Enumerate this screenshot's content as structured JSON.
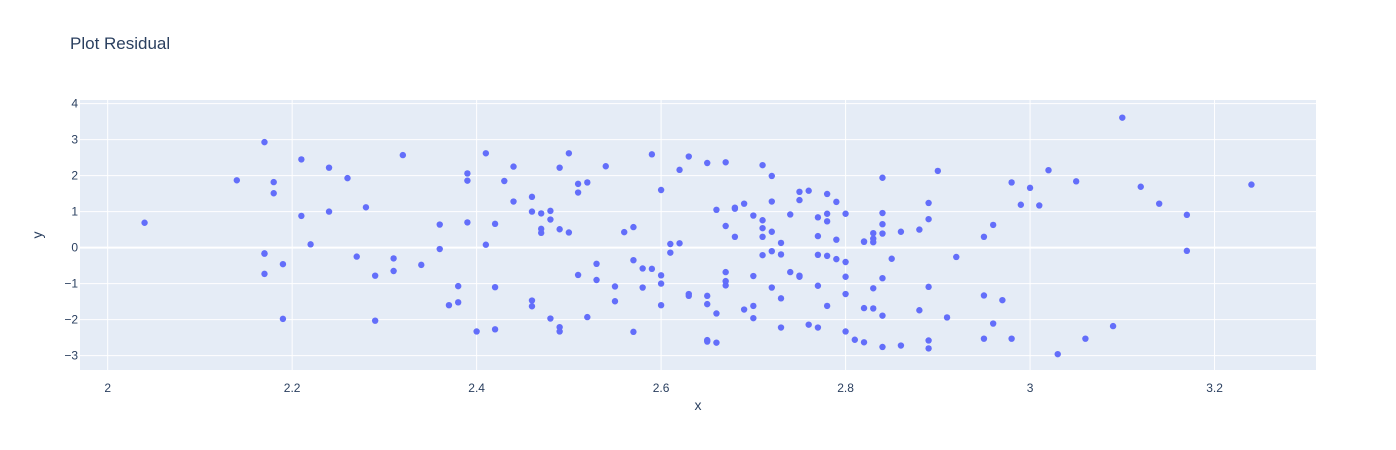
{
  "chart_data": {
    "type": "scatter",
    "title": "Plot Residual",
    "xlabel": "x",
    "ylabel": "y",
    "xlim": [
      1.97,
      3.31
    ],
    "ylim": [
      -3.4,
      4.1
    ],
    "xticks": [
      2,
      2.2,
      2.4,
      2.6,
      2.8,
      3,
      3.2
    ],
    "xtick_labels": [
      "2",
      "2.2",
      "2.4",
      "2.6",
      "2.8",
      "3",
      "3.2"
    ],
    "yticks": [
      -3,
      -2,
      -1,
      0,
      1,
      2,
      3,
      4
    ],
    "ytick_labels": [
      "−3",
      "−2",
      "−1",
      "0",
      "1",
      "2",
      "3",
      "4"
    ],
    "grid": true,
    "colors": {
      "marker": "#636efa",
      "plot_bg": "#e5ecf6",
      "grid": "#ffffff",
      "text": "#2a3f5f"
    },
    "series": [
      {
        "points": [
          [
            2.04,
            0.69
          ],
          [
            2.14,
            1.87
          ],
          [
            2.17,
            2.93
          ],
          [
            2.18,
            1.82
          ],
          [
            2.18,
            1.51
          ],
          [
            2.21,
            2.45
          ],
          [
            2.21,
            0.88
          ],
          [
            2.22,
            0.09
          ],
          [
            2.24,
            2.22
          ],
          [
            2.24,
            1.0
          ],
          [
            2.26,
            1.93
          ],
          [
            2.17,
            -0.16
          ],
          [
            2.17,
            -0.17
          ],
          [
            2.17,
            -0.73
          ],
          [
            2.19,
            -0.46
          ],
          [
            2.19,
            -1.98
          ],
          [
            2.27,
            -0.25
          ],
          [
            2.28,
            1.12
          ],
          [
            2.29,
            -0.78
          ],
          [
            2.29,
            -2.03
          ],
          [
            2.31,
            -0.3
          ],
          [
            2.31,
            -0.65
          ],
          [
            2.32,
            2.57
          ],
          [
            2.34,
            -0.48
          ],
          [
            2.36,
            0.64
          ],
          [
            2.36,
            -0.04
          ],
          [
            2.37,
            -1.6
          ],
          [
            2.38,
            -1.07
          ],
          [
            2.38,
            -1.52
          ],
          [
            2.39,
            2.06
          ],
          [
            2.39,
            0.7
          ],
          [
            2.39,
            1.86
          ],
          [
            2.4,
            -2.33
          ],
          [
            2.41,
            2.62
          ],
          [
            2.41,
            0.08
          ],
          [
            2.42,
            0.66
          ],
          [
            2.42,
            -2.27
          ],
          [
            2.42,
            -1.1
          ],
          [
            2.43,
            1.85
          ],
          [
            2.44,
            1.28
          ],
          [
            2.44,
            2.25
          ],
          [
            2.46,
            1.0
          ],
          [
            2.46,
            1.41
          ],
          [
            2.46,
            -1.63
          ],
          [
            2.46,
            -1.47
          ],
          [
            2.47,
            0.95
          ],
          [
            2.47,
            0.52
          ],
          [
            2.47,
            0.41
          ],
          [
            2.48,
            0.78
          ],
          [
            2.48,
            1.02
          ],
          [
            2.48,
            -1.97
          ],
          [
            2.49,
            0.51
          ],
          [
            2.49,
            -2.33
          ],
          [
            2.49,
            -2.21
          ],
          [
            2.49,
            2.22
          ],
          [
            2.5,
            0.42
          ],
          [
            2.5,
            2.62
          ],
          [
            2.51,
            1.53
          ],
          [
            2.51,
            1.77
          ],
          [
            2.52,
            1.81
          ],
          [
            2.51,
            -0.76
          ],
          [
            2.52,
            -1.93
          ],
          [
            2.53,
            -0.45
          ],
          [
            2.53,
            -0.9
          ],
          [
            2.54,
            2.26
          ],
          [
            2.55,
            -1.08
          ],
          [
            2.55,
            -1.49
          ],
          [
            2.56,
            0.43
          ],
          [
            2.57,
            -0.35
          ],
          [
            2.57,
            -2.34
          ],
          [
            2.57,
            0.57
          ],
          [
            2.58,
            -0.58
          ],
          [
            2.58,
            -1.11
          ],
          [
            2.59,
            -0.59
          ],
          [
            2.59,
            2.59
          ],
          [
            2.6,
            1.6
          ],
          [
            2.6,
            -0.77
          ],
          [
            2.6,
            -1.0
          ],
          [
            2.6,
            -1.6
          ],
          [
            2.61,
            -0.14
          ],
          [
            2.61,
            0.1
          ],
          [
            2.62,
            0.12
          ],
          [
            2.62,
            2.16
          ],
          [
            2.63,
            -1.29
          ],
          [
            2.63,
            -1.34
          ],
          [
            2.63,
            2.53
          ],
          [
            2.65,
            2.35
          ],
          [
            2.65,
            -2.57
          ],
          [
            2.65,
            -2.61
          ],
          [
            2.65,
            -1.57
          ],
          [
            2.65,
            -1.34
          ],
          [
            2.66,
            -1.83
          ],
          [
            2.66,
            1.05
          ],
          [
            2.66,
            -2.64
          ],
          [
            2.67,
            2.37
          ],
          [
            2.67,
            -0.68
          ],
          [
            2.67,
            0.6
          ],
          [
            2.67,
            -0.93
          ],
          [
            2.67,
            -1.05
          ],
          [
            2.68,
            1.08
          ],
          [
            2.68,
            0.3
          ],
          [
            2.68,
            1.11
          ],
          [
            2.69,
            1.22
          ],
          [
            2.69,
            -1.72
          ],
          [
            2.7,
            -1.96
          ],
          [
            2.7,
            -0.79
          ],
          [
            2.7,
            -1.62
          ],
          [
            2.7,
            0.89
          ],
          [
            2.71,
            0.76
          ],
          [
            2.71,
            0.54
          ],
          [
            2.71,
            0.3
          ],
          [
            2.71,
            2.29
          ],
          [
            2.71,
            -0.21
          ],
          [
            2.72,
            0.44
          ],
          [
            2.72,
            -1.11
          ],
          [
            2.72,
            1.28
          ],
          [
            2.72,
            1.99
          ],
          [
            2.72,
            -0.1
          ],
          [
            2.73,
            -0.19
          ],
          [
            2.73,
            0.13
          ],
          [
            2.73,
            -1.41
          ],
          [
            2.73,
            -2.22
          ],
          [
            2.74,
            0.92
          ],
          [
            2.74,
            -0.68
          ],
          [
            2.75,
            1.32
          ],
          [
            2.75,
            -0.78
          ],
          [
            2.75,
            -0.81
          ],
          [
            2.75,
            1.55
          ],
          [
            2.76,
            -2.14
          ],
          [
            2.76,
            1.58
          ],
          [
            2.77,
            -0.2
          ],
          [
            2.77,
            0.84
          ],
          [
            2.77,
            0.32
          ],
          [
            2.77,
            -2.22
          ],
          [
            2.77,
            -1.06
          ],
          [
            2.78,
            0.73
          ],
          [
            2.78,
            -0.23
          ],
          [
            2.78,
            0.94
          ],
          [
            2.78,
            1.49
          ],
          [
            2.78,
            -1.62
          ],
          [
            2.79,
            0.22
          ],
          [
            2.79,
            -0.32
          ],
          [
            2.79,
            1.27
          ],
          [
            2.8,
            -0.4
          ],
          [
            2.8,
            -0.81
          ],
          [
            2.8,
            -2.33
          ],
          [
            2.8,
            0.94
          ],
          [
            2.8,
            -1.29
          ],
          [
            2.81,
            -2.56
          ],
          [
            2.82,
            -2.63
          ],
          [
            2.82,
            -1.68
          ],
          [
            2.82,
            0.16
          ],
          [
            2.82,
            0.17
          ],
          [
            2.83,
            0.4
          ],
          [
            2.83,
            0.15
          ],
          [
            2.83,
            0.25
          ],
          [
            2.83,
            -1.13
          ],
          [
            2.83,
            -1.69
          ],
          [
            2.84,
            0.96
          ],
          [
            2.84,
            0.39
          ],
          [
            2.84,
            0.65
          ],
          [
            2.84,
            -0.85
          ],
          [
            2.84,
            -1.89
          ],
          [
            2.84,
            -2.76
          ],
          [
            2.84,
            1.94
          ],
          [
            2.85,
            -0.31
          ],
          [
            2.86,
            0.44
          ],
          [
            2.86,
            -2.72
          ],
          [
            2.88,
            -1.74
          ],
          [
            2.88,
            0.5
          ],
          [
            2.89,
            0.79
          ],
          [
            2.89,
            1.24
          ],
          [
            2.89,
            -2.8
          ],
          [
            2.89,
            -1.09
          ],
          [
            2.89,
            -2.58
          ],
          [
            2.9,
            2.13
          ],
          [
            2.91,
            -1.94
          ],
          [
            2.92,
            -0.26
          ],
          [
            2.95,
            -1.33
          ],
          [
            2.95,
            -2.53
          ],
          [
            2.95,
            0.3
          ],
          [
            2.96,
            -2.11
          ],
          [
            2.96,
            0.63
          ],
          [
            2.97,
            -1.46
          ],
          [
            2.98,
            -2.53
          ],
          [
            2.98,
            1.81
          ],
          [
            2.99,
            1.19
          ],
          [
            3.0,
            1.66
          ],
          [
            3.01,
            1.17
          ],
          [
            3.02,
            2.15
          ],
          [
            3.03,
            -2.96
          ],
          [
            3.05,
            1.84
          ],
          [
            3.06,
            -2.53
          ],
          [
            3.09,
            -2.18
          ],
          [
            3.1,
            3.61
          ],
          [
            3.12,
            1.69
          ],
          [
            3.14,
            1.22
          ],
          [
            3.17,
            -0.09
          ],
          [
            3.17,
            0.91
          ],
          [
            3.24,
            1.75
          ]
        ]
      }
    ]
  }
}
